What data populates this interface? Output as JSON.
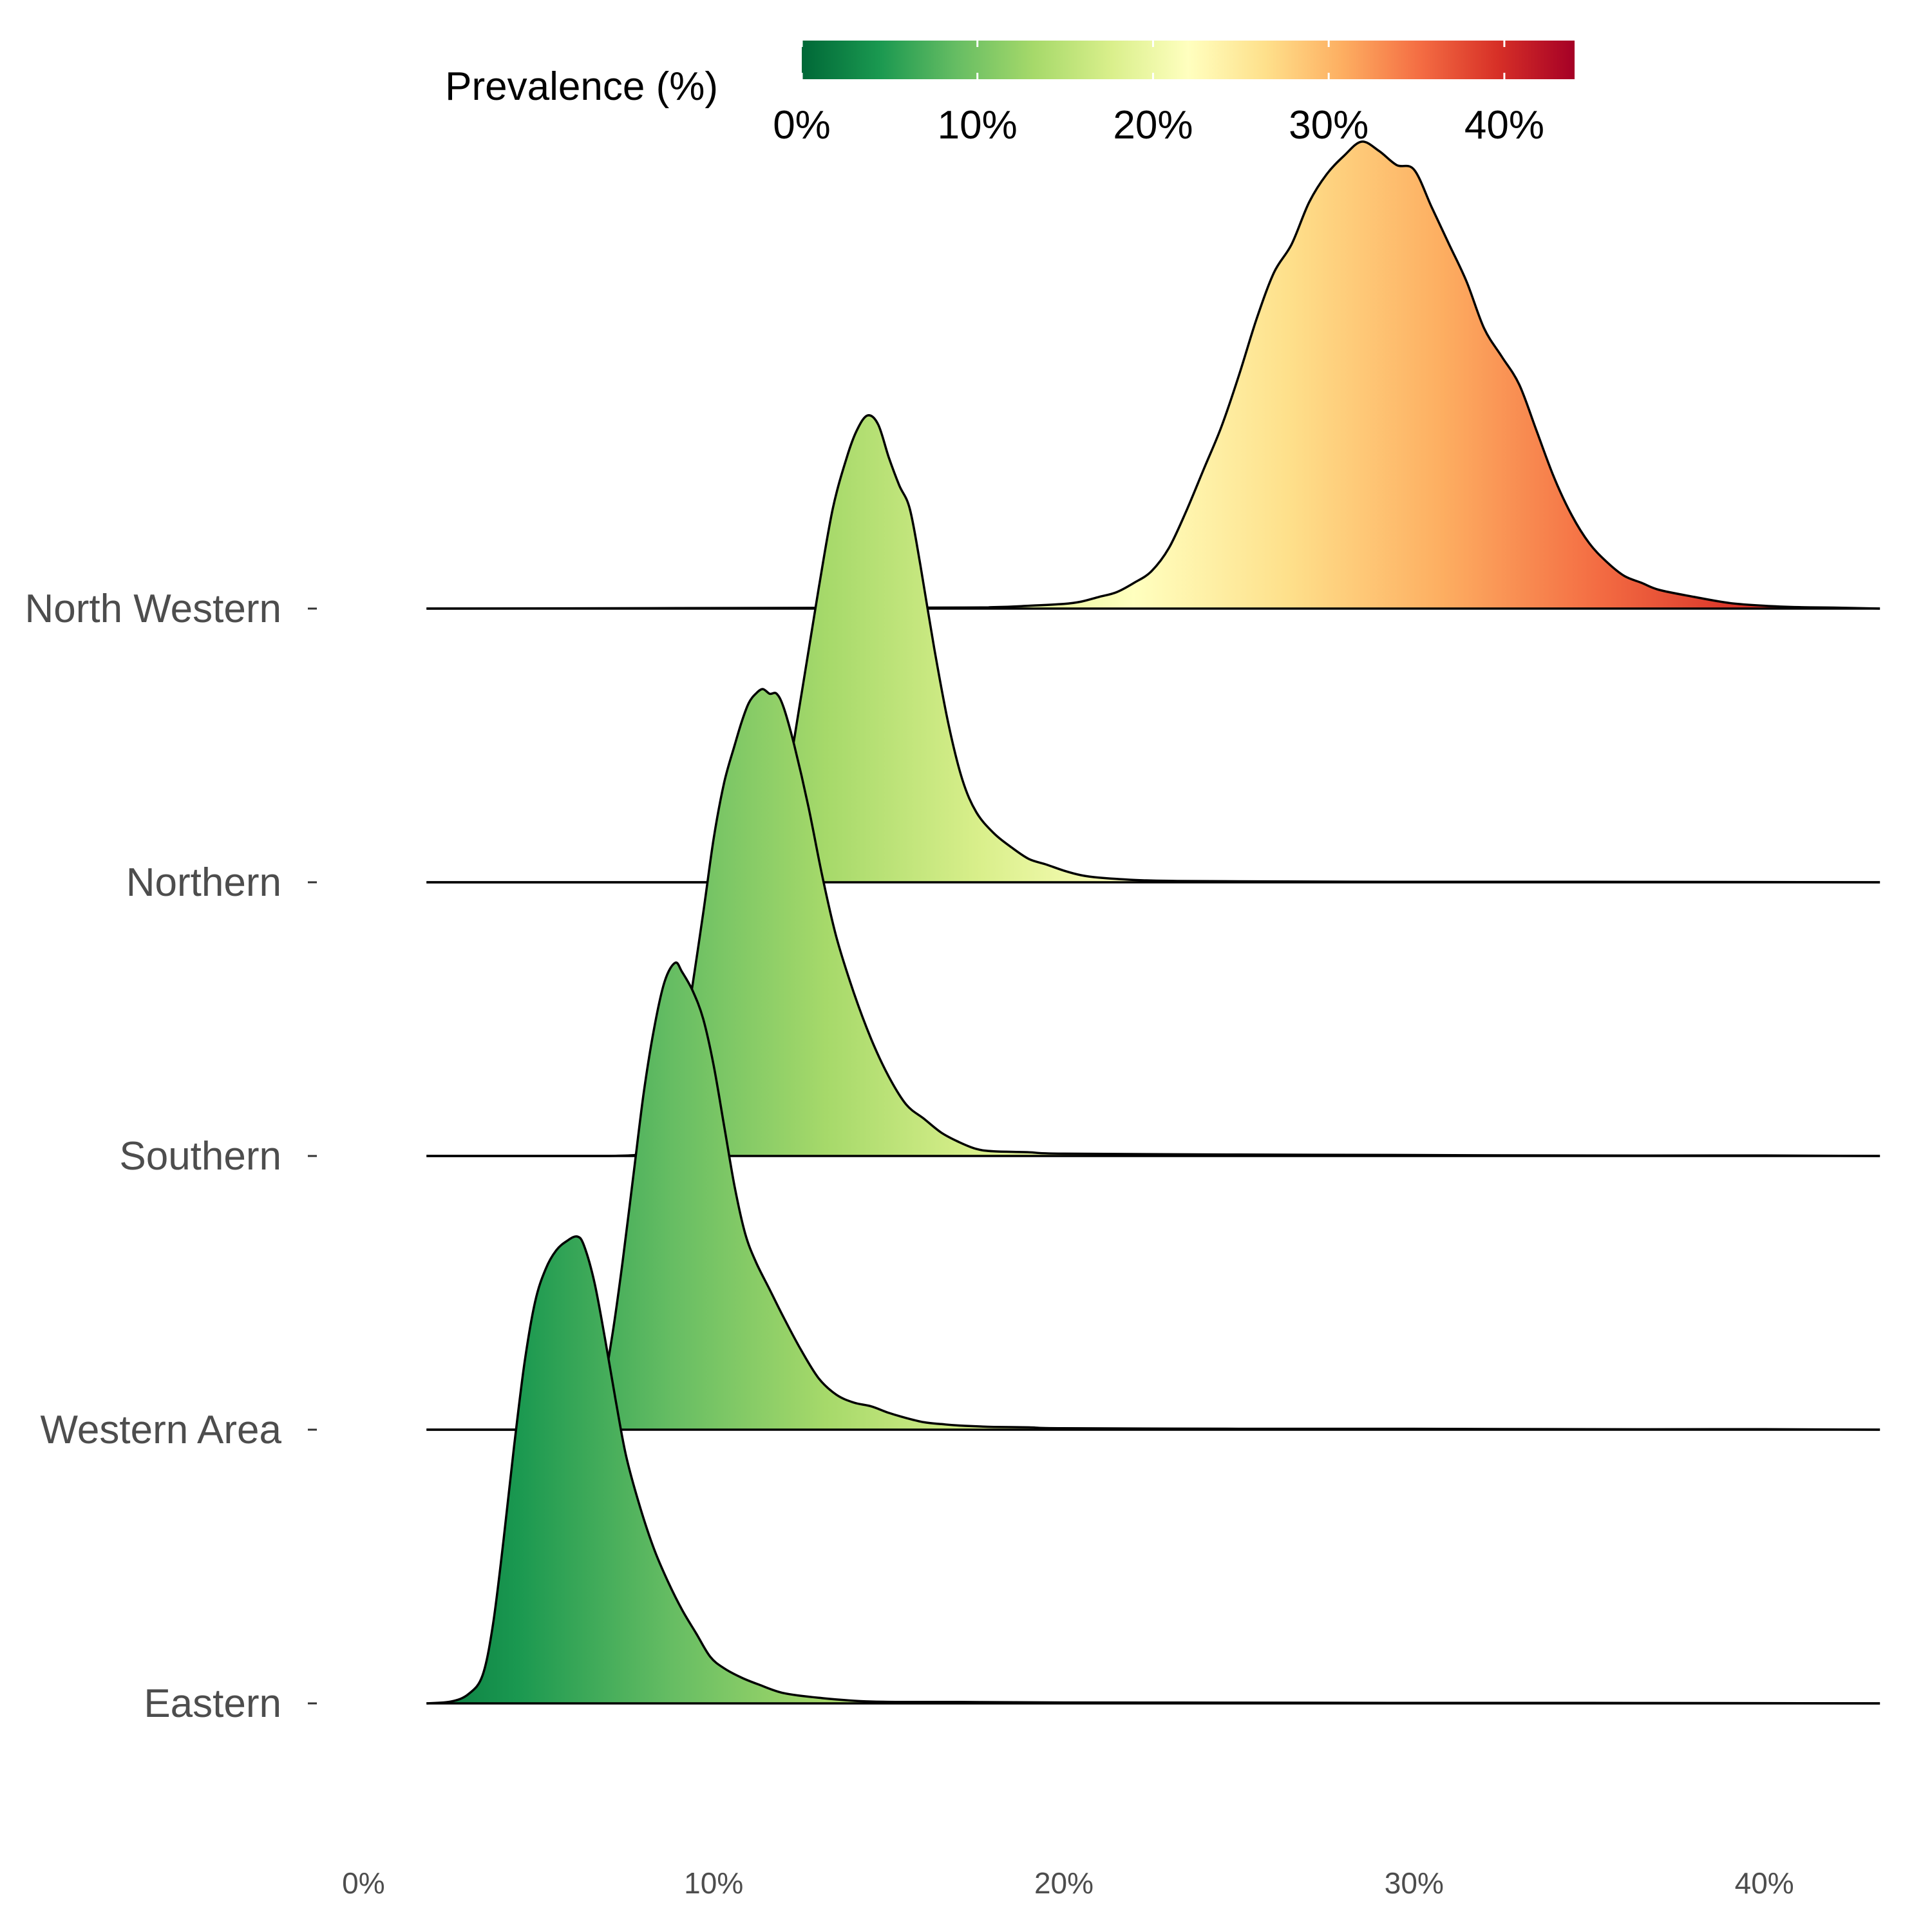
{
  "chart_data": {
    "type": "ridgeline",
    "title": "",
    "xlabel": "",
    "ylabel": "",
    "xlim": [
      -0.01,
      0.435
    ],
    "x_ticks": [
      {
        "value": 0.0,
        "label": "0%"
      },
      {
        "value": 0.1,
        "label": "10%"
      },
      {
        "value": 0.2,
        "label": "20%"
      },
      {
        "value": 0.3,
        "label": "30%"
      },
      {
        "value": 0.4,
        "label": "40%"
      }
    ],
    "legend": {
      "title": "Prevalence (%)",
      "position": "top",
      "range": [
        0.0,
        0.44
      ],
      "ticks": [
        {
          "value": 0.0,
          "label": "0%"
        },
        {
          "value": 0.1,
          "label": "10%"
        },
        {
          "value": 0.2,
          "label": "20%"
        },
        {
          "value": 0.3,
          "label": "30%"
        },
        {
          "value": 0.4,
          "label": "40%"
        }
      ],
      "palette": [
        "#006837",
        "#1a9850",
        "#66bd63",
        "#a6d96a",
        "#d9ef8b",
        "#ffffbf",
        "#fee08b",
        "#fdae61",
        "#f46d43",
        "#d73027",
        "#a50026"
      ]
    },
    "series": [
      {
        "name": "Eastern",
        "x": [
          0.018,
          0.025,
          0.03,
          0.034,
          0.037,
          0.04,
          0.043,
          0.046,
          0.049,
          0.052,
          0.055,
          0.058,
          0.061,
          0.063,
          0.066,
          0.069,
          0.072,
          0.075,
          0.079,
          0.083,
          0.087,
          0.091,
          0.095,
          0.099,
          0.103,
          0.108,
          0.113,
          0.12,
          0.13,
          0.145,
          0.17,
          0.2,
          0.25,
          0.3,
          0.35,
          0.4,
          0.433
        ],
        "density": [
          0.0,
          0.004,
          0.02,
          0.06,
          0.17,
          0.35,
          0.55,
          0.73,
          0.86,
          0.93,
          0.97,
          0.99,
          1.0,
          0.98,
          0.9,
          0.78,
          0.65,
          0.53,
          0.42,
          0.33,
          0.26,
          0.2,
          0.15,
          0.1,
          0.075,
          0.055,
          0.04,
          0.022,
          0.012,
          0.004,
          0.003,
          0.002,
          0.0015,
          0.001,
          0.001,
          0.0005,
          0.0
        ]
      },
      {
        "name": "Western Area",
        "x": [
          0.018,
          0.05,
          0.06,
          0.064,
          0.068,
          0.071,
          0.074,
          0.077,
          0.08,
          0.083,
          0.086,
          0.089,
          0.091,
          0.094,
          0.097,
          0.1,
          0.103,
          0.106,
          0.109,
          0.112,
          0.116,
          0.12,
          0.125,
          0.13,
          0.135,
          0.14,
          0.145,
          0.15,
          0.155,
          0.16,
          0.165,
          0.17,
          0.18,
          0.19,
          0.2,
          0.25,
          0.3,
          0.35,
          0.4,
          0.433
        ],
        "density": [
          0.0,
          0.0,
          0.005,
          0.02,
          0.08,
          0.2,
          0.36,
          0.54,
          0.72,
          0.86,
          0.96,
          1.0,
          0.98,
          0.94,
          0.88,
          0.78,
          0.65,
          0.52,
          0.42,
          0.36,
          0.3,
          0.24,
          0.17,
          0.11,
          0.075,
          0.058,
          0.05,
          0.036,
          0.025,
          0.016,
          0.012,
          0.009,
          0.006,
          0.005,
          0.003,
          0.002,
          0.002,
          0.001,
          0.001,
          0.0
        ]
      },
      {
        "name": "Southern",
        "x": [
          0.018,
          0.07,
          0.08,
          0.085,
          0.089,
          0.093,
          0.097,
          0.1,
          0.103,
          0.106,
          0.108,
          0.11,
          0.112,
          0.114,
          0.116,
          0.118,
          0.12,
          0.123,
          0.127,
          0.131,
          0.135,
          0.14,
          0.145,
          0.15,
          0.155,
          0.16,
          0.165,
          0.17,
          0.175,
          0.18,
          0.19,
          0.2,
          0.25,
          0.3,
          0.35,
          0.4,
          0.433
        ],
        "density": [
          0.0,
          0.0,
          0.01,
          0.05,
          0.15,
          0.32,
          0.52,
          0.68,
          0.8,
          0.88,
          0.93,
          0.97,
          0.99,
          1.0,
          0.99,
          0.99,
          0.96,
          0.88,
          0.75,
          0.6,
          0.47,
          0.35,
          0.25,
          0.17,
          0.11,
          0.08,
          0.05,
          0.03,
          0.015,
          0.01,
          0.008,
          0.005,
          0.003,
          0.002,
          0.001,
          0.001,
          0.0
        ]
      },
      {
        "name": "Northern",
        "x": [
          0.018,
          0.1,
          0.11,
          0.115,
          0.12,
          0.125,
          0.13,
          0.134,
          0.138,
          0.141,
          0.144,
          0.147,
          0.15,
          0.153,
          0.156,
          0.159,
          0.163,
          0.167,
          0.171,
          0.175,
          0.18,
          0.185,
          0.19,
          0.195,
          0.2,
          0.205,
          0.21,
          0.22,
          0.23,
          0.25,
          0.3,
          0.35,
          0.4,
          0.433
        ],
        "density": [
          0.0,
          0.0,
          0.01,
          0.05,
          0.18,
          0.4,
          0.63,
          0.8,
          0.91,
          0.97,
          1.0,
          0.98,
          0.91,
          0.85,
          0.8,
          0.68,
          0.5,
          0.34,
          0.22,
          0.15,
          0.105,
          0.075,
          0.05,
          0.038,
          0.025,
          0.015,
          0.01,
          0.005,
          0.003,
          0.002,
          0.001,
          0.001,
          0.0005,
          0.0
        ]
      },
      {
        "name": "North Western",
        "x": [
          0.018,
          0.16,
          0.18,
          0.19,
          0.2,
          0.205,
          0.21,
          0.215,
          0.22,
          0.225,
          0.23,
          0.235,
          0.24,
          0.245,
          0.25,
          0.255,
          0.26,
          0.265,
          0.27,
          0.275,
          0.28,
          0.285,
          0.29,
          0.295,
          0.3,
          0.305,
          0.31,
          0.315,
          0.32,
          0.325,
          0.33,
          0.335,
          0.34,
          0.345,
          0.35,
          0.355,
          0.36,
          0.365,
          0.37,
          0.38,
          0.39,
          0.4,
          0.41,
          0.42,
          0.433
        ],
        "density": [
          0.0,
          0.002,
          0.003,
          0.006,
          0.01,
          0.015,
          0.025,
          0.035,
          0.055,
          0.08,
          0.13,
          0.21,
          0.3,
          0.39,
          0.5,
          0.62,
          0.72,
          0.78,
          0.87,
          0.93,
          0.97,
          1.0,
          0.98,
          0.95,
          0.94,
          0.86,
          0.78,
          0.7,
          0.6,
          0.54,
          0.48,
          0.38,
          0.28,
          0.2,
          0.14,
          0.1,
          0.07,
          0.055,
          0.04,
          0.025,
          0.012,
          0.006,
          0.003,
          0.002,
          0.0
        ]
      }
    ]
  }
}
